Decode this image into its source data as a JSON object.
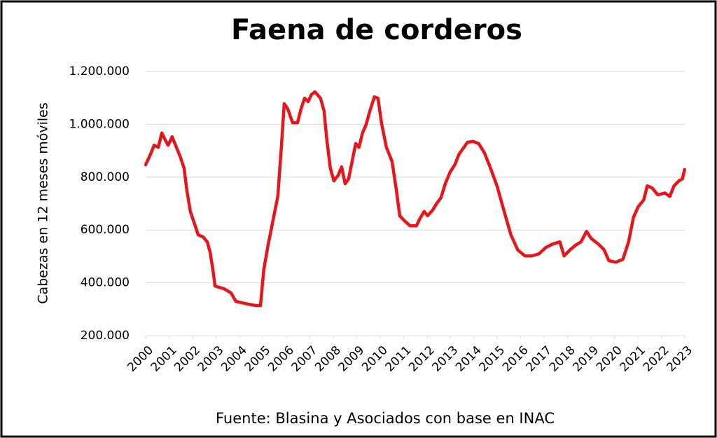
{
  "chart_data": {
    "type": "line",
    "title": "Faena de corderos",
    "y_label": "Cabezas en 12 meses móviles",
    "source": "Fuente: Blasina y Asociados con base en INAC",
    "color": "#e8161b",
    "grid": true,
    "xlim": [
      2000,
      2023
    ],
    "xticks": [
      2000,
      2001,
      2002,
      2003,
      2004,
      2005,
      2006,
      2007,
      2008,
      2009,
      2010,
      2011,
      2012,
      2013,
      2014,
      2015,
      2016,
      2017,
      2018,
      2019,
      2020,
      2021,
      2022,
      2023
    ],
    "ylim": [
      200000,
      1200000
    ],
    "yticks": [
      {
        "value": 200000,
        "label": "200.000"
      },
      {
        "value": 400000,
        "label": "400.000"
      },
      {
        "value": 600000,
        "label": "600.000"
      },
      {
        "value": 800000,
        "label": "800.000"
      },
      {
        "value": 1000000,
        "label": "1.000.000"
      },
      {
        "value": 1200000,
        "label": "1.200.000"
      }
    ],
    "x": [
      2000.0,
      2000.21,
      2000.36,
      2000.54,
      2000.69,
      2000.84,
      2000.96,
      2001.13,
      2001.31,
      2001.49,
      2001.64,
      2001.76,
      2001.91,
      2002.09,
      2002.24,
      2002.45,
      2002.63,
      2002.75,
      2002.87,
      2002.96,
      2003.13,
      2003.34,
      2003.64,
      2003.85,
      2004.09,
      2004.39,
      2004.69,
      2004.9,
      2005.04,
      2005.22,
      2005.43,
      2005.64,
      2005.79,
      2005.91,
      2006.06,
      2006.27,
      2006.48,
      2006.63,
      2006.78,
      2006.93,
      2007.07,
      2007.22,
      2007.46,
      2007.61,
      2007.73,
      2007.88,
      2008.03,
      2008.21,
      2008.36,
      2008.51,
      2008.66,
      2008.81,
      2008.96,
      2009.1,
      2009.25,
      2009.4,
      2009.55,
      2009.76,
      2009.91,
      2010.06,
      2010.27,
      2010.51,
      2010.69,
      2010.84,
      2011.04,
      2011.28,
      2011.55,
      2011.7,
      2011.88,
      2012.03,
      2012.24,
      2012.42,
      2012.6,
      2012.78,
      2012.99,
      2013.19,
      2013.37,
      2013.58,
      2013.73,
      2013.97,
      2014.21,
      2014.45,
      2014.69,
      2014.99,
      2015.28,
      2015.58,
      2015.88,
      2016.18,
      2016.48,
      2016.78,
      2017.07,
      2017.37,
      2017.67,
      2017.85,
      2018.12,
      2018.33,
      2018.57,
      2018.81,
      2019.01,
      2019.31,
      2019.55,
      2019.76,
      2020.06,
      2020.36,
      2020.6,
      2020.81,
      2021.01,
      2021.25,
      2021.4,
      2021.61,
      2021.85,
      2022.15,
      2022.36,
      2022.54,
      2022.75,
      2022.9,
      2022.99
    ],
    "values": [
      847000,
      887000,
      921000,
      913000,
      967000,
      940000,
      921000,
      953000,
      913000,
      874000,
      834000,
      749000,
      670000,
      622000,
      582000,
      574000,
      555000,
      516000,
      449000,
      388000,
      383000,
      378000,
      362000,
      330000,
      325000,
      319000,
      314000,
      314000,
      449000,
      542000,
      635000,
      728000,
      913000,
      1078000,
      1059000,
      1006000,
      1006000,
      1059000,
      1099000,
      1086000,
      1112000,
      1123000,
      1099000,
      1051000,
      940000,
      834000,
      786000,
      807000,
      839000,
      775000,
      794000,
      860000,
      927000,
      913000,
      967000,
      998000,
      1046000,
      1104000,
      1099000,
      1006000,
      913000,
      860000,
      754000,
      654000,
      635000,
      616000,
      616000,
      643000,
      670000,
      654000,
      675000,
      701000,
      722000,
      775000,
      820000,
      847000,
      887000,
      913000,
      932000,
      935000,
      927000,
      892000,
      839000,
      767000,
      675000,
      582000,
      524000,
      502000,
      502000,
      510000,
      534000,
      547000,
      555000,
      502000,
      526000,
      542000,
      555000,
      595000,
      568000,
      547000,
      526000,
      484000,
      478000,
      489000,
      555000,
      648000,
      688000,
      714000,
      767000,
      759000,
      733000,
      740000,
      727000,
      767000,
      786000,
      794000,
      829000
    ]
  }
}
